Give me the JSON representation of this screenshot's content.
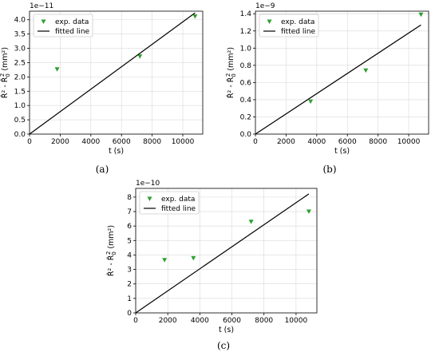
{
  "chart_data": [
    {
      "id": "a",
      "type": "scatter",
      "caption": "(a)",
      "multiplier": "1e−11",
      "xlabel": "t (s)",
      "ylabel_main": "R̂² - R̂",
      "ylabel_sub": "0",
      "ylabel_sup": "2",
      "ylabel_unit": " (mm²)",
      "xlim": [
        0,
        11300
      ],
      "ylim": [
        0,
        4.3
      ],
      "xticks": [
        0,
        2000,
        4000,
        6000,
        8000,
        10000
      ],
      "xtick_labels": [
        "0",
        "2000",
        "4000",
        "6000",
        "8000",
        "10000"
      ],
      "yticks": [
        0.0,
        0.5,
        1.0,
        1.5,
        2.0,
        2.5,
        3.0,
        3.5,
        4.0
      ],
      "ytick_labels": [
        "0.0",
        "0.5",
        "1.0",
        "1.5",
        "2.0",
        "2.5",
        "3.0",
        "3.5",
        "4.0"
      ],
      "grid": true,
      "legend_position": "top-left",
      "series": [
        {
          "name": "exp. data",
          "kind": "scatter",
          "x": [
            1800,
            7200,
            10800
          ],
          "y": [
            2.27,
            2.72,
            4.12
          ]
        },
        {
          "name": "fitted line",
          "kind": "line",
          "x": [
            0,
            10800
          ],
          "y": [
            0,
            4.24
          ]
        }
      ]
    },
    {
      "id": "b",
      "type": "scatter",
      "caption": "(b)",
      "multiplier": "1e−9",
      "xlabel": "t (s)",
      "ylabel_main": "R̂² - R̂",
      "ylabel_sub": "0",
      "ylabel_sup": "2",
      "ylabel_unit": " (mm²)",
      "xlim": [
        0,
        11300
      ],
      "ylim": [
        0,
        1.43
      ],
      "xticks": [
        0,
        2000,
        4000,
        6000,
        8000,
        10000
      ],
      "xtick_labels": [
        "0",
        "2000",
        "4000",
        "6000",
        "8000",
        "10000"
      ],
      "yticks": [
        0.0,
        0.2,
        0.4,
        0.6,
        0.8,
        1.0,
        1.2,
        1.4
      ],
      "ytick_labels": [
        "0.0",
        "0.2",
        "0.4",
        "0.6",
        "0.8",
        "1.0",
        "1.2",
        "1.4"
      ],
      "grid": true,
      "legend_position": "top-left",
      "series": [
        {
          "name": "exp. data",
          "kind": "scatter",
          "x": [
            3600,
            7200,
            10800
          ],
          "y": [
            0.38,
            0.74,
            1.39
          ]
        },
        {
          "name": "fitted line",
          "kind": "line",
          "x": [
            0,
            10800
          ],
          "y": [
            0,
            1.27
          ]
        }
      ]
    },
    {
      "id": "c",
      "type": "scatter",
      "caption": "(c)",
      "multiplier": "1e−10",
      "xlabel": "t (s)",
      "ylabel_main": "R̂² - R̂",
      "ylabel_sub": "0",
      "ylabel_sup": "2",
      "ylabel_unit": " (mm²)",
      "xlim": [
        0,
        11300
      ],
      "ylim": [
        0,
        8.6
      ],
      "xticks": [
        0,
        2000,
        4000,
        6000,
        8000,
        10000
      ],
      "xtick_labels": [
        "0",
        "2000",
        "4000",
        "6000",
        "8000",
        "10000"
      ],
      "yticks": [
        0,
        1,
        2,
        3,
        4,
        5,
        6,
        7,
        8
      ],
      "ytick_labels": [
        "0",
        "1",
        "2",
        "3",
        "4",
        "5",
        "6",
        "7",
        "8"
      ],
      "grid": true,
      "legend_position": "top-left",
      "series": [
        {
          "name": "exp. data",
          "kind": "scatter",
          "x": [
            1800,
            3600,
            7200,
            10800
          ],
          "y": [
            3.65,
            3.78,
            6.3,
            7.0
          ]
        },
        {
          "name": "fitted line",
          "kind": "line",
          "x": [
            0,
            10800
          ],
          "y": [
            0,
            8.22
          ]
        }
      ]
    }
  ],
  "colors": {
    "marker": "#2ca02c",
    "line": "#000000",
    "grid": "#d9d9d9"
  }
}
